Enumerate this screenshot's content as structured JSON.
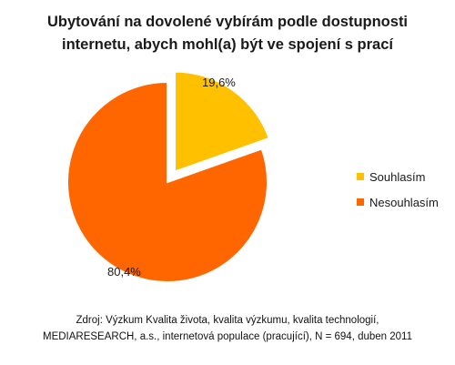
{
  "chart_data": {
    "type": "pie",
    "title_lines": [
      "Ubytování na dovolené vybírám podle dostupnosti",
      "internetu, abych mohl(a) být ve spojení s prací"
    ],
    "slices": [
      {
        "name": "Souhlasím",
        "value": 19.6,
        "label": "19,6%",
        "color": "#FFC000",
        "exploded": true
      },
      {
        "name": "Nesouhlasím",
        "value": 80.4,
        "label": "80,4%",
        "color": "#FF6600",
        "exploded": false
      }
    ],
    "legend_position": "right"
  },
  "source_lines": [
    "Zdroj: Výzkum Kvalita života, kvalita výzkumu, kvalita technologií,",
    "MEDIARESEARCH, a.s., internetová populace (pracující), N = 694, duben 2011"
  ]
}
